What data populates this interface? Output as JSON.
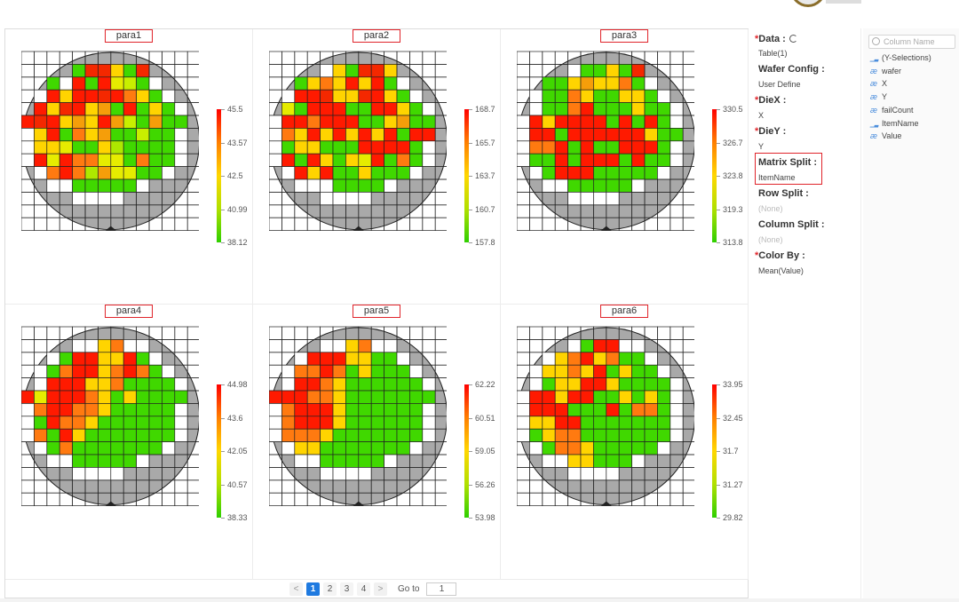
{
  "grid": [
    [
      0,
      0,
      0,
      0,
      0,
      0,
      0,
      0,
      0,
      0,
      0,
      0,
      0,
      0
    ],
    [
      0,
      0,
      0,
      0,
      1,
      1,
      1,
      1,
      1,
      1,
      0,
      0,
      0,
      0
    ],
    [
      0,
      0,
      1,
      1,
      1,
      1,
      1,
      1,
      1,
      1,
      1,
      1,
      0,
      0
    ],
    [
      0,
      1,
      1,
      1,
      1,
      1,
      1,
      1,
      1,
      1,
      1,
      1,
      1,
      0
    ],
    [
      0,
      1,
      1,
      1,
      1,
      1,
      1,
      1,
      1,
      1,
      1,
      1,
      1,
      0
    ],
    [
      1,
      1,
      1,
      1,
      1,
      1,
      1,
      1,
      1,
      1,
      1,
      1,
      1,
      1
    ],
    [
      1,
      1,
      1,
      1,
      1,
      1,
      1,
      1,
      1,
      1,
      1,
      1,
      1,
      1
    ],
    [
      1,
      1,
      1,
      1,
      1,
      1,
      1,
      1,
      1,
      1,
      1,
      1,
      1,
      1
    ],
    [
      1,
      1,
      1,
      1,
      1,
      1,
      1,
      1,
      1,
      1,
      1,
      1,
      1,
      1
    ],
    [
      0,
      1,
      1,
      1,
      1,
      1,
      1,
      1,
      1,
      1,
      1,
      1,
      1,
      0
    ],
    [
      0,
      1,
      1,
      1,
      1,
      1,
      1,
      1,
      1,
      1,
      1,
      1,
      1,
      0
    ],
    [
      0,
      0,
      1,
      1,
      1,
      1,
      1,
      1,
      1,
      1,
      1,
      1,
      0,
      0
    ],
    [
      0,
      0,
      0,
      0,
      1,
      1,
      1,
      1,
      1,
      1,
      0,
      0,
      0,
      0
    ],
    [
      0,
      0,
      0,
      0,
      0,
      0,
      0,
      0,
      0,
      0,
      0,
      0,
      0,
      0
    ]
  ],
  "charts": [
    {
      "title": "para1",
      "legend": [
        "45.5",
        "43.57",
        "42.5",
        "40.99",
        "38.12"
      ],
      "cells": [
        "..............",
        "....GDDYGD....",
        "..GWRGRBCGW...",
        ".WRYRRDROYGW..",
        ".RYDRYEGRGYGW.",
        "RDRYEYRECGEGG.",
        "WYRGOYEGGCGGW.",
        "WYYBGGYFGGGGW.",
        "WRBROOBBGOGGW.",
        ".WOROFEBBGGW..",
        "..WWGGGGGW....",
        "....WWWW......",
        "..............",
        ".............."
      ]
    },
    {
      "title": "para2",
      "legend": [
        "168.7",
        "165.7",
        "163.7",
        "160.7",
        "157.8"
      ],
      "cells": [
        "..............",
        "....WYGDDY....",
        "..GYOYRYRGW...",
        ".WRRDYYDRYGW..",
        ".BGRRRGGRRYGW.",
        "WRRORRRGGYEGG.",
        "WOYRYRYRYRGRR.",
        "WGYYGGGRRRRGW.",
        "WRGRYGYBRGOGW.",
        ".WRYRGGYGGGW..",
        "..WWWGGGGW....",
        "....WWWW......",
        "..............",
        ".............."
      ]
    },
    {
      "title": "para3",
      "legend": [
        "330.5",
        "326.7",
        "323.8",
        "319.3",
        "313.8"
      ],
      "cells": [
        "..............",
        "....WGGYGD....",
        "..GGYEYYOGW...",
        ".WGGOYGGYYGW..",
        ".WGGORGGGYGGW.",
        "WRYRRRRGRGRGW.",
        "WRRGRRRRRRYGG.",
        "WOORGRGGRRRGW.",
        "WGGRGRRRGRGGW.",
        ".WGRRRGGGGGW..",
        "..WWGGGGGW....",
        "....WWWW......",
        "..............",
        ".............."
      ]
    },
    {
      "title": "para4",
      "legend": [
        "44.98",
        "43.6",
        "42.05",
        "40.57",
        "38.33"
      ],
      "cells": [
        "..............",
        "....WWYOWW....",
        "..WGRRYYRGW...",
        ".WGORRYOROGW..",
        ".WRRRYYOGGGGW.",
        "RBRRROYGYGGGG.",
        "WORROOYGGGGGW.",
        "WGROOYGGGGGGW.",
        "WOGRYGGGGGGGW.",
        ".WGOGGGGGGGW..",
        "..WWGGGGGW....",
        "....WWWW......",
        "..............",
        ".............."
      ]
    },
    {
      "title": "para5",
      "legend": [
        "62.22",
        "60.51",
        "59.05",
        "56.26",
        "53.98"
      ],
      "cells": [
        "..............",
        "....WWYOWW....",
        "..WRRRYYGGW...",
        ".WOOROGYGGGW..",
        ".WRROYGGGGGGW.",
        "RRROOYGGGGGGG.",
        "WORRRYGGGGGGW.",
        "WORRRYGGGGGGW.",
        "WOOOYGGGGGGGW.",
        ".WYYGGGGGGGW..",
        "..WWGGGGGW....",
        "....WWWW......",
        "..............",
        ".............."
      ]
    },
    {
      "title": "para6",
      "legend": [
        "33.95",
        "32.45",
        "31.7",
        "31.27",
        "29.82"
      ],
      "cells": [
        "..............",
        "....WGRRWW....",
        "..WYORYOGGW...",
        ".WYYOYRGYGGW..",
        ".WGYYRRYGGGGW.",
        "WRRYRRGGYGYGW.",
        "WRRRGGGRGOOGW.",
        "WYYRRGGGGGGGW.",
        "WGYOOGGGGGGGW.",
        ".WGOOYGGGGGW..",
        "..WWYYGGGW....",
        "....WWWW......",
        "..............",
        ".............."
      ]
    }
  ],
  "palette": {
    "R": "#ff1a00",
    "D": "#f42800",
    "O": "#ff7a10",
    "E": "#f59e0a",
    "Y": "#ffd400",
    "B": "#e6ec00",
    "C": "#c8ef00",
    "F": "#aee800",
    "G": "#40d800",
    "W": "#ffffff"
  },
  "pager": {
    "prev": "<",
    "pages": [
      "1",
      "2",
      "3",
      "4"
    ],
    "next": ">",
    "goto_label": "Go to",
    "goto_value": "1"
  },
  "config": {
    "data_label": "Data :",
    "data_value": "Table(1)",
    "wafer_label": "Wafer Config :",
    "wafer_value": "User Define",
    "diex_label": "DieX :",
    "diex_value": "X",
    "diey_label": "DieY :",
    "diey_value": "Y",
    "matrix_label": "Matrix Split :",
    "matrix_value": "ItemName",
    "row_label": "Row Split :",
    "row_value": "(None)",
    "col_label": "Column Split :",
    "col_value": "(None)",
    "color_label": "Color By :",
    "color_value": "Mean(Value)"
  },
  "columns": {
    "search_placeholder": "Column Name",
    "items": [
      {
        "label": "(Y-Selections)",
        "icon": "bar-chart-icon"
      },
      {
        "label": "wafer",
        "icon": "text-column-icon"
      },
      {
        "label": "X",
        "icon": "text-column-icon"
      },
      {
        "label": "Y",
        "icon": "text-column-icon"
      },
      {
        "label": "failCount",
        "icon": "text-column-icon"
      },
      {
        "label": "ItemName",
        "icon": "bar-chart-icon"
      },
      {
        "label": "Value",
        "icon": "text-column-icon"
      }
    ]
  },
  "colors": {
    "accent": "#1f7ae0",
    "required": "#e0242a",
    "wafer_fill": "#a9a9a9"
  }
}
